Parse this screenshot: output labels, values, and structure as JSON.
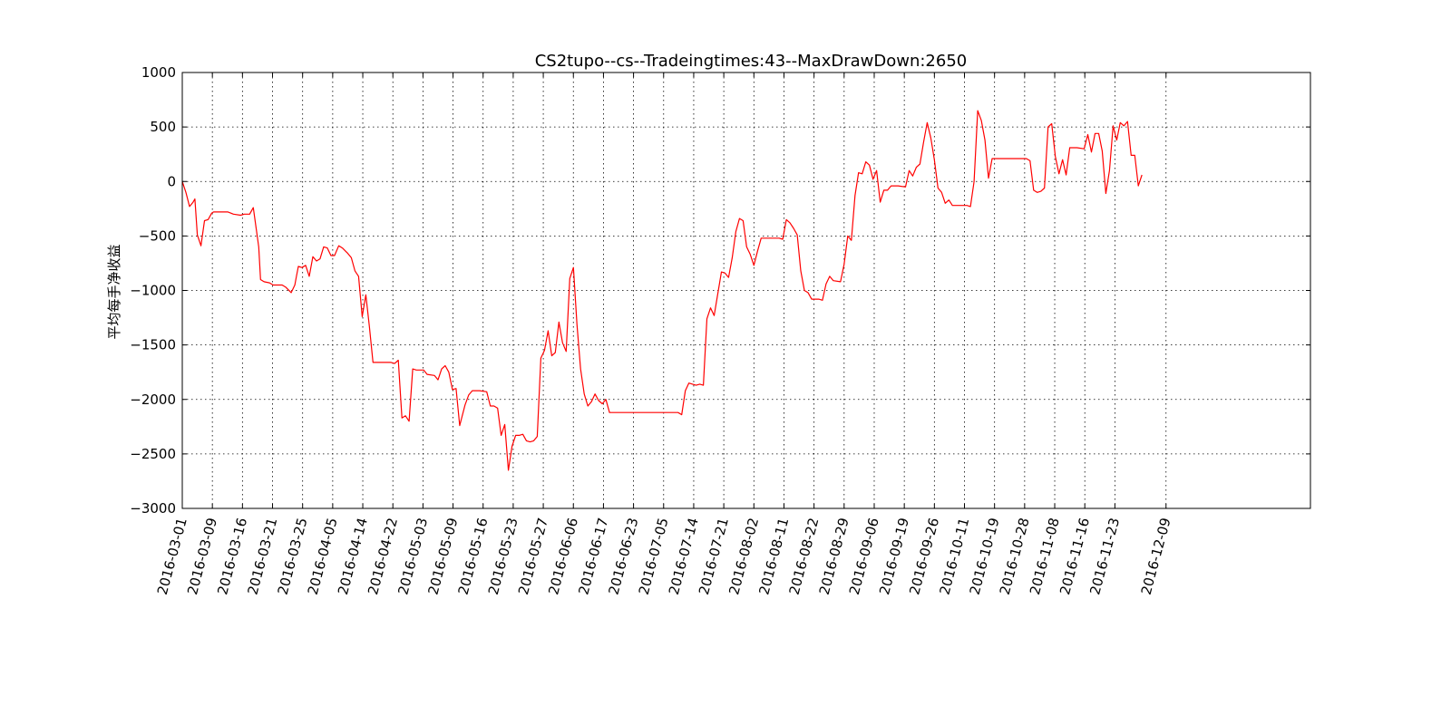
{
  "chart_data": {
    "type": "line",
    "title": "CS2tupo--cs--Tradeingtimes:43--MaxDrawDown:2650",
    "xlabel": "",
    "ylabel": "平均每手净收益",
    "ylim": [
      -3000,
      1000
    ],
    "yticks": [
      1000,
      500,
      0,
      -500,
      -1000,
      -1500,
      -2000,
      -2500,
      -3000
    ],
    "ytick_labels": [
      "1000",
      "500",
      "0",
      "−500",
      "−1000",
      "−1500",
      "−2000",
      "−2500",
      "−3000"
    ],
    "xlim": [
      0,
      375
    ],
    "xticks": [
      {
        "x": 0,
        "label": "2016-03-01"
      },
      {
        "x": 10,
        "label": "2016-03-09"
      },
      {
        "x": 20,
        "label": "2016-03-16"
      },
      {
        "x": 30,
        "label": "2016-03-21"
      },
      {
        "x": 40,
        "label": "2016-03-25"
      },
      {
        "x": 50,
        "label": "2016-04-05"
      },
      {
        "x": 60,
        "label": "2016-04-14"
      },
      {
        "x": 70,
        "label": "2016-04-22"
      },
      {
        "x": 80,
        "label": "2016-05-03"
      },
      {
        "x": 90,
        "label": "2016-05-09"
      },
      {
        "x": 100,
        "label": "2016-05-16"
      },
      {
        "x": 110,
        "label": "2016-05-23"
      },
      {
        "x": 120,
        "label": "2016-05-27"
      },
      {
        "x": 130,
        "label": "2016-06-06"
      },
      {
        "x": 140,
        "label": "2016-06-17"
      },
      {
        "x": 150,
        "label": "2016-06-23"
      },
      {
        "x": 160,
        "label": "2016-07-05"
      },
      {
        "x": 170,
        "label": "2016-07-14"
      },
      {
        "x": 180,
        "label": "2016-07-21"
      },
      {
        "x": 190,
        "label": "2016-08-02"
      },
      {
        "x": 200,
        "label": "2016-08-11"
      },
      {
        "x": 210,
        "label": "2016-08-22"
      },
      {
        "x": 220,
        "label": "2016-08-29"
      },
      {
        "x": 230,
        "label": "2016-09-06"
      },
      {
        "x": 240,
        "label": "2016-09-19"
      },
      {
        "x": 250,
        "label": "2016-09-26"
      },
      {
        "x": 260,
        "label": "2016-10-11"
      },
      {
        "x": 270,
        "label": "2016-10-19"
      },
      {
        "x": 280,
        "label": "2016-10-28"
      },
      {
        "x": 290,
        "label": "2016-11-08"
      },
      {
        "x": 300,
        "label": "2016-11-16"
      },
      {
        "x": 310,
        "label": "2016-11-23"
      },
      {
        "x": 327,
        "label": "2016-12-09"
      }
    ],
    "grid": true,
    "series": [
      {
        "color": "#ff0000",
        "points": [
          [
            0,
            0
          ],
          [
            1.2,
            -100
          ],
          [
            2.4,
            -230
          ],
          [
            3.6,
            -190
          ],
          [
            4.2,
            -160
          ],
          [
            5,
            -490
          ],
          [
            6.2,
            -590
          ],
          [
            7.4,
            -360
          ],
          [
            8.6,
            -350
          ],
          [
            9.8,
            -290
          ],
          [
            10.4,
            -280
          ],
          [
            12.8,
            -280
          ],
          [
            15.2,
            -280
          ],
          [
            17,
            -300
          ],
          [
            19.4,
            -310
          ],
          [
            20.6,
            -300
          ],
          [
            22.4,
            -300
          ],
          [
            23.6,
            -240
          ],
          [
            25.4,
            -600
          ],
          [
            26,
            -900
          ],
          [
            27.2,
            -920
          ],
          [
            29,
            -930
          ],
          [
            30.2,
            -950
          ],
          [
            31.4,
            -950
          ],
          [
            33.2,
            -950
          ],
          [
            34.4,
            -970
          ],
          [
            36.2,
            -1020
          ],
          [
            37.4,
            -950
          ],
          [
            38,
            -860
          ],
          [
            38.6,
            -780
          ],
          [
            39.8,
            -790
          ],
          [
            41,
            -770
          ],
          [
            42.2,
            -870
          ],
          [
            43.4,
            -690
          ],
          [
            44.6,
            -730
          ],
          [
            45.8,
            -710
          ],
          [
            47,
            -600
          ],
          [
            48.2,
            -610
          ],
          [
            49.4,
            -680
          ],
          [
            50.6,
            -680
          ],
          [
            52,
            -590
          ],
          [
            53.2,
            -610
          ],
          [
            55,
            -660
          ],
          [
            56.2,
            -700
          ],
          [
            57.4,
            -820
          ],
          [
            58.6,
            -870
          ],
          [
            59.8,
            -1240
          ],
          [
            61,
            -1040
          ],
          [
            62.2,
            -1330
          ],
          [
            63.4,
            -1660
          ],
          [
            64.6,
            -1660
          ],
          [
            67,
            -1660
          ],
          [
            69.4,
            -1660
          ],
          [
            70.6,
            -1670
          ],
          [
            71.8,
            -1640
          ],
          [
            73,
            -2170
          ],
          [
            74.2,
            -2150
          ],
          [
            75.4,
            -2200
          ],
          [
            76.6,
            -1720
          ],
          [
            77.8,
            -1730
          ],
          [
            80.2,
            -1730
          ],
          [
            81.4,
            -1770
          ],
          [
            83.8,
            -1780
          ],
          [
            85,
            -1820
          ],
          [
            86.2,
            -1720
          ],
          [
            87.4,
            -1690
          ],
          [
            88.6,
            -1750
          ],
          [
            89.8,
            -1910
          ],
          [
            91,
            -1900
          ],
          [
            92.2,
            -2240
          ],
          [
            94,
            -2050
          ],
          [
            95.2,
            -1960
          ],
          [
            96.4,
            -1920
          ],
          [
            98.8,
            -1920
          ],
          [
            101.2,
            -1930
          ],
          [
            102.4,
            -2060
          ],
          [
            103.6,
            -2060
          ],
          [
            104.8,
            -2080
          ],
          [
            106,
            -2330
          ],
          [
            107.2,
            -2230
          ],
          [
            108.4,
            -2650
          ],
          [
            109.6,
            -2430
          ],
          [
            110.8,
            -2330
          ],
          [
            112,
            -2330
          ],
          [
            113.2,
            -2320
          ],
          [
            114.4,
            -2380
          ],
          [
            115.6,
            -2390
          ],
          [
            116.8,
            -2380
          ],
          [
            118,
            -2340
          ],
          [
            119.2,
            -1620
          ],
          [
            120.4,
            -1550
          ],
          [
            121.6,
            -1370
          ],
          [
            122.8,
            -1600
          ],
          [
            124,
            -1570
          ],
          [
            125.2,
            -1290
          ],
          [
            126.4,
            -1480
          ],
          [
            127.6,
            -1560
          ],
          [
            128.8,
            -890
          ],
          [
            130,
            -790
          ],
          [
            131.2,
            -1310
          ],
          [
            132.4,
            -1720
          ],
          [
            133.6,
            -1950
          ],
          [
            134.8,
            -2060
          ],
          [
            136,
            -2020
          ],
          [
            137.2,
            -1950
          ],
          [
            138.4,
            -2010
          ],
          [
            139.6,
            -2040
          ],
          [
            140.8,
            -2000
          ],
          [
            142,
            -2120
          ],
          [
            146.8,
            -2120
          ],
          [
            151.6,
            -2120
          ],
          [
            156.4,
            -2120
          ],
          [
            161.2,
            -2120
          ],
          [
            164.8,
            -2120
          ],
          [
            166,
            -2140
          ],
          [
            167.2,
            -1920
          ],
          [
            168.4,
            -1850
          ],
          [
            169.6,
            -1860
          ],
          [
            170.8,
            -1870
          ],
          [
            172,
            -1860
          ],
          [
            173.2,
            -1870
          ],
          [
            174.4,
            -1260
          ],
          [
            175.6,
            -1160
          ],
          [
            176.8,
            -1230
          ],
          [
            178,
            -1030
          ],
          [
            179.2,
            -830
          ],
          [
            180.4,
            -840
          ],
          [
            181.6,
            -880
          ],
          [
            182.8,
            -700
          ],
          [
            184,
            -460
          ],
          [
            185.2,
            -340
          ],
          [
            186.4,
            -360
          ],
          [
            187.6,
            -600
          ],
          [
            188.8,
            -670
          ],
          [
            190,
            -770
          ],
          [
            191.2,
            -640
          ],
          [
            192.4,
            -520
          ],
          [
            196,
            -520
          ],
          [
            198.4,
            -520
          ],
          [
            199.6,
            -530
          ],
          [
            200.8,
            -350
          ],
          [
            202,
            -380
          ],
          [
            203.2,
            -430
          ],
          [
            204.4,
            -490
          ],
          [
            205.6,
            -820
          ],
          [
            206.8,
            -1000
          ],
          [
            208,
            -1020
          ],
          [
            209.2,
            -1080
          ],
          [
            211.6,
            -1080
          ],
          [
            212.8,
            -1090
          ],
          [
            214,
            -940
          ],
          [
            215.2,
            -870
          ],
          [
            216.4,
            -910
          ],
          [
            218.8,
            -920
          ],
          [
            220,
            -760
          ],
          [
            221.2,
            -500
          ],
          [
            222.4,
            -540
          ],
          [
            223.6,
            -130
          ],
          [
            224.8,
            80
          ],
          [
            226,
            70
          ],
          [
            227.2,
            180
          ],
          [
            228.4,
            150
          ],
          [
            229.6,
            20
          ],
          [
            230.8,
            100
          ],
          [
            232,
            -190
          ],
          [
            233.2,
            -80
          ],
          [
            234.4,
            -80
          ],
          [
            235.6,
            -40
          ],
          [
            238,
            -40
          ],
          [
            240.4,
            -50
          ],
          [
            241.6,
            100
          ],
          [
            242.8,
            50
          ],
          [
            244,
            130
          ],
          [
            245.2,
            160
          ],
          [
            246.4,
            360
          ],
          [
            247.6,
            540
          ],
          [
            248.8,
            400
          ],
          [
            250,
            200
          ],
          [
            251.2,
            -60
          ],
          [
            252.4,
            -100
          ],
          [
            253.6,
            -200
          ],
          [
            254.8,
            -170
          ],
          [
            256,
            -220
          ],
          [
            258.4,
            -220
          ],
          [
            260.8,
            -220
          ],
          [
            262,
            -230
          ],
          [
            263.2,
            0
          ],
          [
            264.4,
            650
          ],
          [
            265.6,
            560
          ],
          [
            266.8,
            380
          ],
          [
            268,
            30
          ],
          [
            269.2,
            210
          ],
          [
            271.6,
            210
          ],
          [
            274,
            210
          ],
          [
            276.4,
            210
          ],
          [
            278.8,
            210
          ],
          [
            280.6,
            210
          ],
          [
            281.8,
            190
          ],
          [
            283,
            -80
          ],
          [
            284.2,
            -100
          ],
          [
            285.4,
            -90
          ],
          [
            286.6,
            -60
          ],
          [
            287.8,
            500
          ],
          [
            289,
            530
          ],
          [
            290.2,
            230
          ],
          [
            291.4,
            70
          ],
          [
            292.6,
            200
          ],
          [
            293.8,
            60
          ],
          [
            295,
            310
          ],
          [
            297.4,
            310
          ],
          [
            299.8,
            300
          ],
          [
            301,
            430
          ],
          [
            302.2,
            270
          ],
          [
            303.4,
            440
          ],
          [
            304.6,
            440
          ],
          [
            305.8,
            280
          ],
          [
            307,
            -110
          ],
          [
            308.2,
            100
          ],
          [
            309.4,
            510
          ],
          [
            310.6,
            380
          ],
          [
            311.8,
            540
          ],
          [
            313,
            510
          ],
          [
            314.2,
            550
          ],
          [
            315.4,
            240
          ],
          [
            316.6,
            240
          ],
          [
            317.8,
            -40
          ],
          [
            319,
            60
          ]
        ]
      }
    ]
  }
}
